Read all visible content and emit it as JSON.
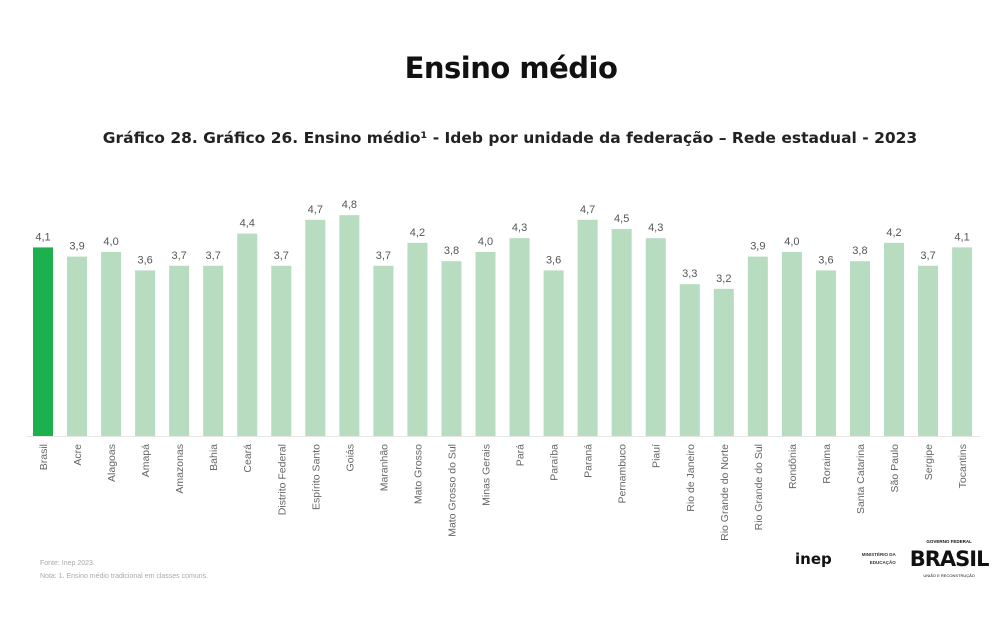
{
  "page_title": "Ensino médio",
  "chart_data": {
    "type": "bar",
    "title": "Gráfico 28. Gráfico 26. Ensino médio¹ - Ideb por unidade da federação – Rede estadual - 2023",
    "xlabel": "",
    "ylabel": "",
    "ylim": [
      0,
      5
    ],
    "grid": false,
    "categories": [
      "Brasil",
      "Acre",
      "Alagoas",
      "Amapá",
      "Amazonas",
      "Bahia",
      "Ceará",
      "Distrito Federal",
      "Espírito Santo",
      "Goiás",
      "Maranhão",
      "Mato Grosso",
      "Mato Grosso do Sul",
      "Minas Gerais",
      "Pará",
      "Paraíba",
      "Paraná",
      "Pernambuco",
      "Piauí",
      "Rio de Janeiro",
      "Rio Grande do Norte",
      "Rio Grande do Sul",
      "Rondônia",
      "Roraima",
      "Santa Catarina",
      "São Paulo",
      "Sergipe",
      "Tocantins"
    ],
    "values": [
      4.1,
      3.9,
      4.0,
      3.6,
      3.7,
      3.7,
      4.4,
      3.7,
      4.7,
      4.8,
      3.7,
      4.2,
      3.8,
      4.0,
      4.3,
      3.6,
      4.7,
      4.5,
      4.3,
      3.3,
      3.2,
      3.9,
      4.0,
      3.6,
      3.8,
      4.2,
      3.7,
      4.1
    ],
    "labels": [
      "4,1",
      "3,9",
      "4,0",
      "3,6",
      "3,7",
      "3,7",
      "4,4",
      "3,7",
      "4,7",
      "4,8",
      "3,7",
      "4,2",
      "3,8",
      "4,0",
      "4,3",
      "3,6",
      "4,7",
      "4,5",
      "4,3",
      "3,3",
      "3,2",
      "3,9",
      "4,0",
      "3,6",
      "3,8",
      "4,2",
      "3,7",
      "4,1"
    ],
    "colors": {
      "highlight": "#1db04e",
      "default": "#b7dcbf"
    }
  },
  "footer": {
    "source": "Fonte: Inep 2023.",
    "note": "Nota: 1. Ensino médio tradicional em classes comuns."
  },
  "logos": {
    "inep": "inep",
    "mec": "MINISTÉRIO DA EDUCAÇÃO",
    "gov_top": "GOVERNO FEDERAL",
    "gov_main": "BRASIL",
    "gov_sub": "UNIÃO E RECONSTRUÇÃO"
  }
}
